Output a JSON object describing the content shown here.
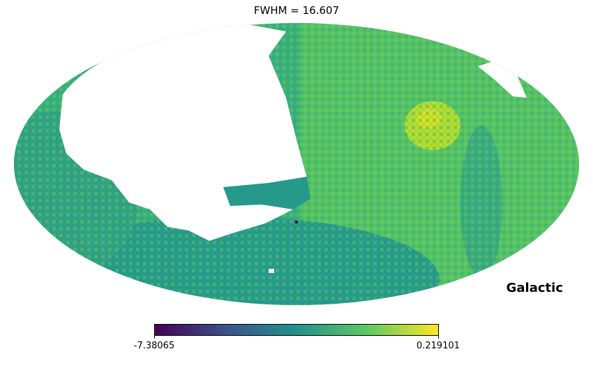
{
  "title": "FWHM = 16.607",
  "coord_system": "Galactic",
  "colorbar": {
    "min_label": "-7.38065",
    "max_label": "0.219101",
    "colormap": "viridis",
    "stops": [
      "#440154",
      "#3b528b",
      "#21918c",
      "#5ec962",
      "#fde725"
    ]
  },
  "map": {
    "projection": "Mollweide",
    "masked_color": "#ffffff"
  }
}
